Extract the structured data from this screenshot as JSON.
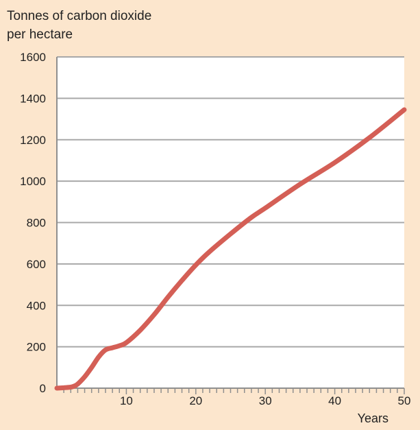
{
  "chart_data": {
    "type": "line",
    "ylabel_lines": [
      "Tonnes of carbon dioxide",
      "per hectare"
    ],
    "xlabel": "Years",
    "xlim": [
      0,
      50
    ],
    "ylim": [
      0,
      1600
    ],
    "x_ticks": [
      10,
      20,
      30,
      40,
      50
    ],
    "y_ticks": [
      0,
      200,
      400,
      600,
      800,
      1000,
      1200,
      1400,
      1600
    ],
    "grid": true,
    "series": [
      {
        "color": "#d45f56",
        "x": [
          0,
          1,
          2,
          2.5,
          3,
          4,
          5,
          6,
          7,
          8,
          9,
          10,
          12,
          14,
          16,
          18,
          20,
          22,
          25,
          28,
          30,
          35,
          40,
          45,
          50
        ],
        "y": [
          0,
          2,
          5,
          10,
          20,
          55,
          100,
          150,
          185,
          195,
          205,
          220,
          280,
          355,
          440,
          520,
          595,
          660,
          745,
          825,
          870,
          985,
          1090,
          1210,
          1345
        ]
      }
    ],
    "colors": {
      "background": "#fce6cd",
      "plot_background": "#ffffff",
      "grid": "#a8a8a8",
      "axis": "#8f8f8f",
      "line": "#d45f56"
    }
  }
}
